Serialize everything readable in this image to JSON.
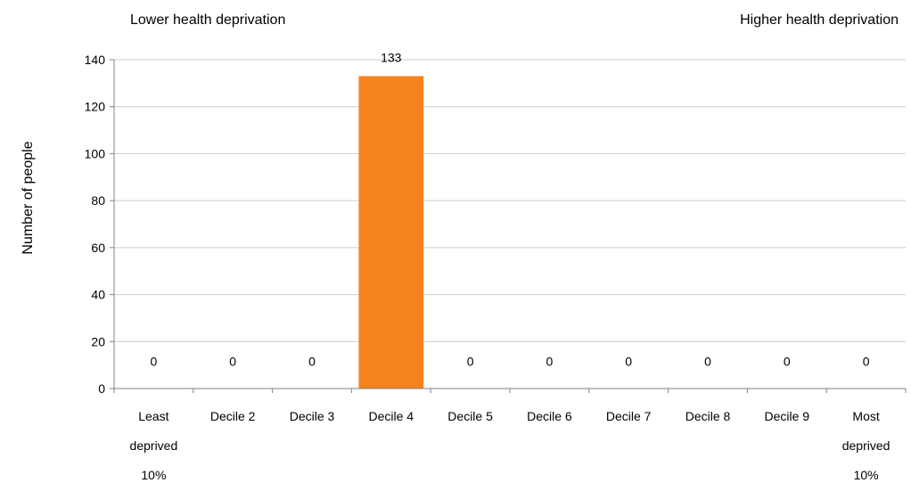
{
  "chart_data": {
    "type": "bar",
    "categories": [
      [
        "Least",
        "deprived",
        "10%"
      ],
      [
        "Decile 2"
      ],
      [
        "Decile 3"
      ],
      [
        "Decile 4"
      ],
      [
        "Decile 5"
      ],
      [
        "Decile 6"
      ],
      [
        "Decile 7"
      ],
      [
        "Decile 8"
      ],
      [
        "Decile 9"
      ],
      [
        "Most",
        "deprived",
        "10%"
      ]
    ],
    "values": [
      0,
      0,
      0,
      133,
      0,
      0,
      0,
      0,
      0,
      0
    ],
    "data_labels": [
      "0",
      "0",
      "0",
      "133",
      "0",
      "0",
      "0",
      "0",
      "0",
      "0"
    ],
    "ylabel": "Number of people",
    "ylim": [
      0,
      140
    ],
    "yticks": [
      0,
      20,
      40,
      60,
      80,
      100,
      120,
      140
    ],
    "grid": true,
    "bar_color": "#F5821F",
    "grid_color": "#c4cfd9",
    "annotations": {
      "left": "Lower health deprivation",
      "right": "Higher health deprivation"
    }
  }
}
